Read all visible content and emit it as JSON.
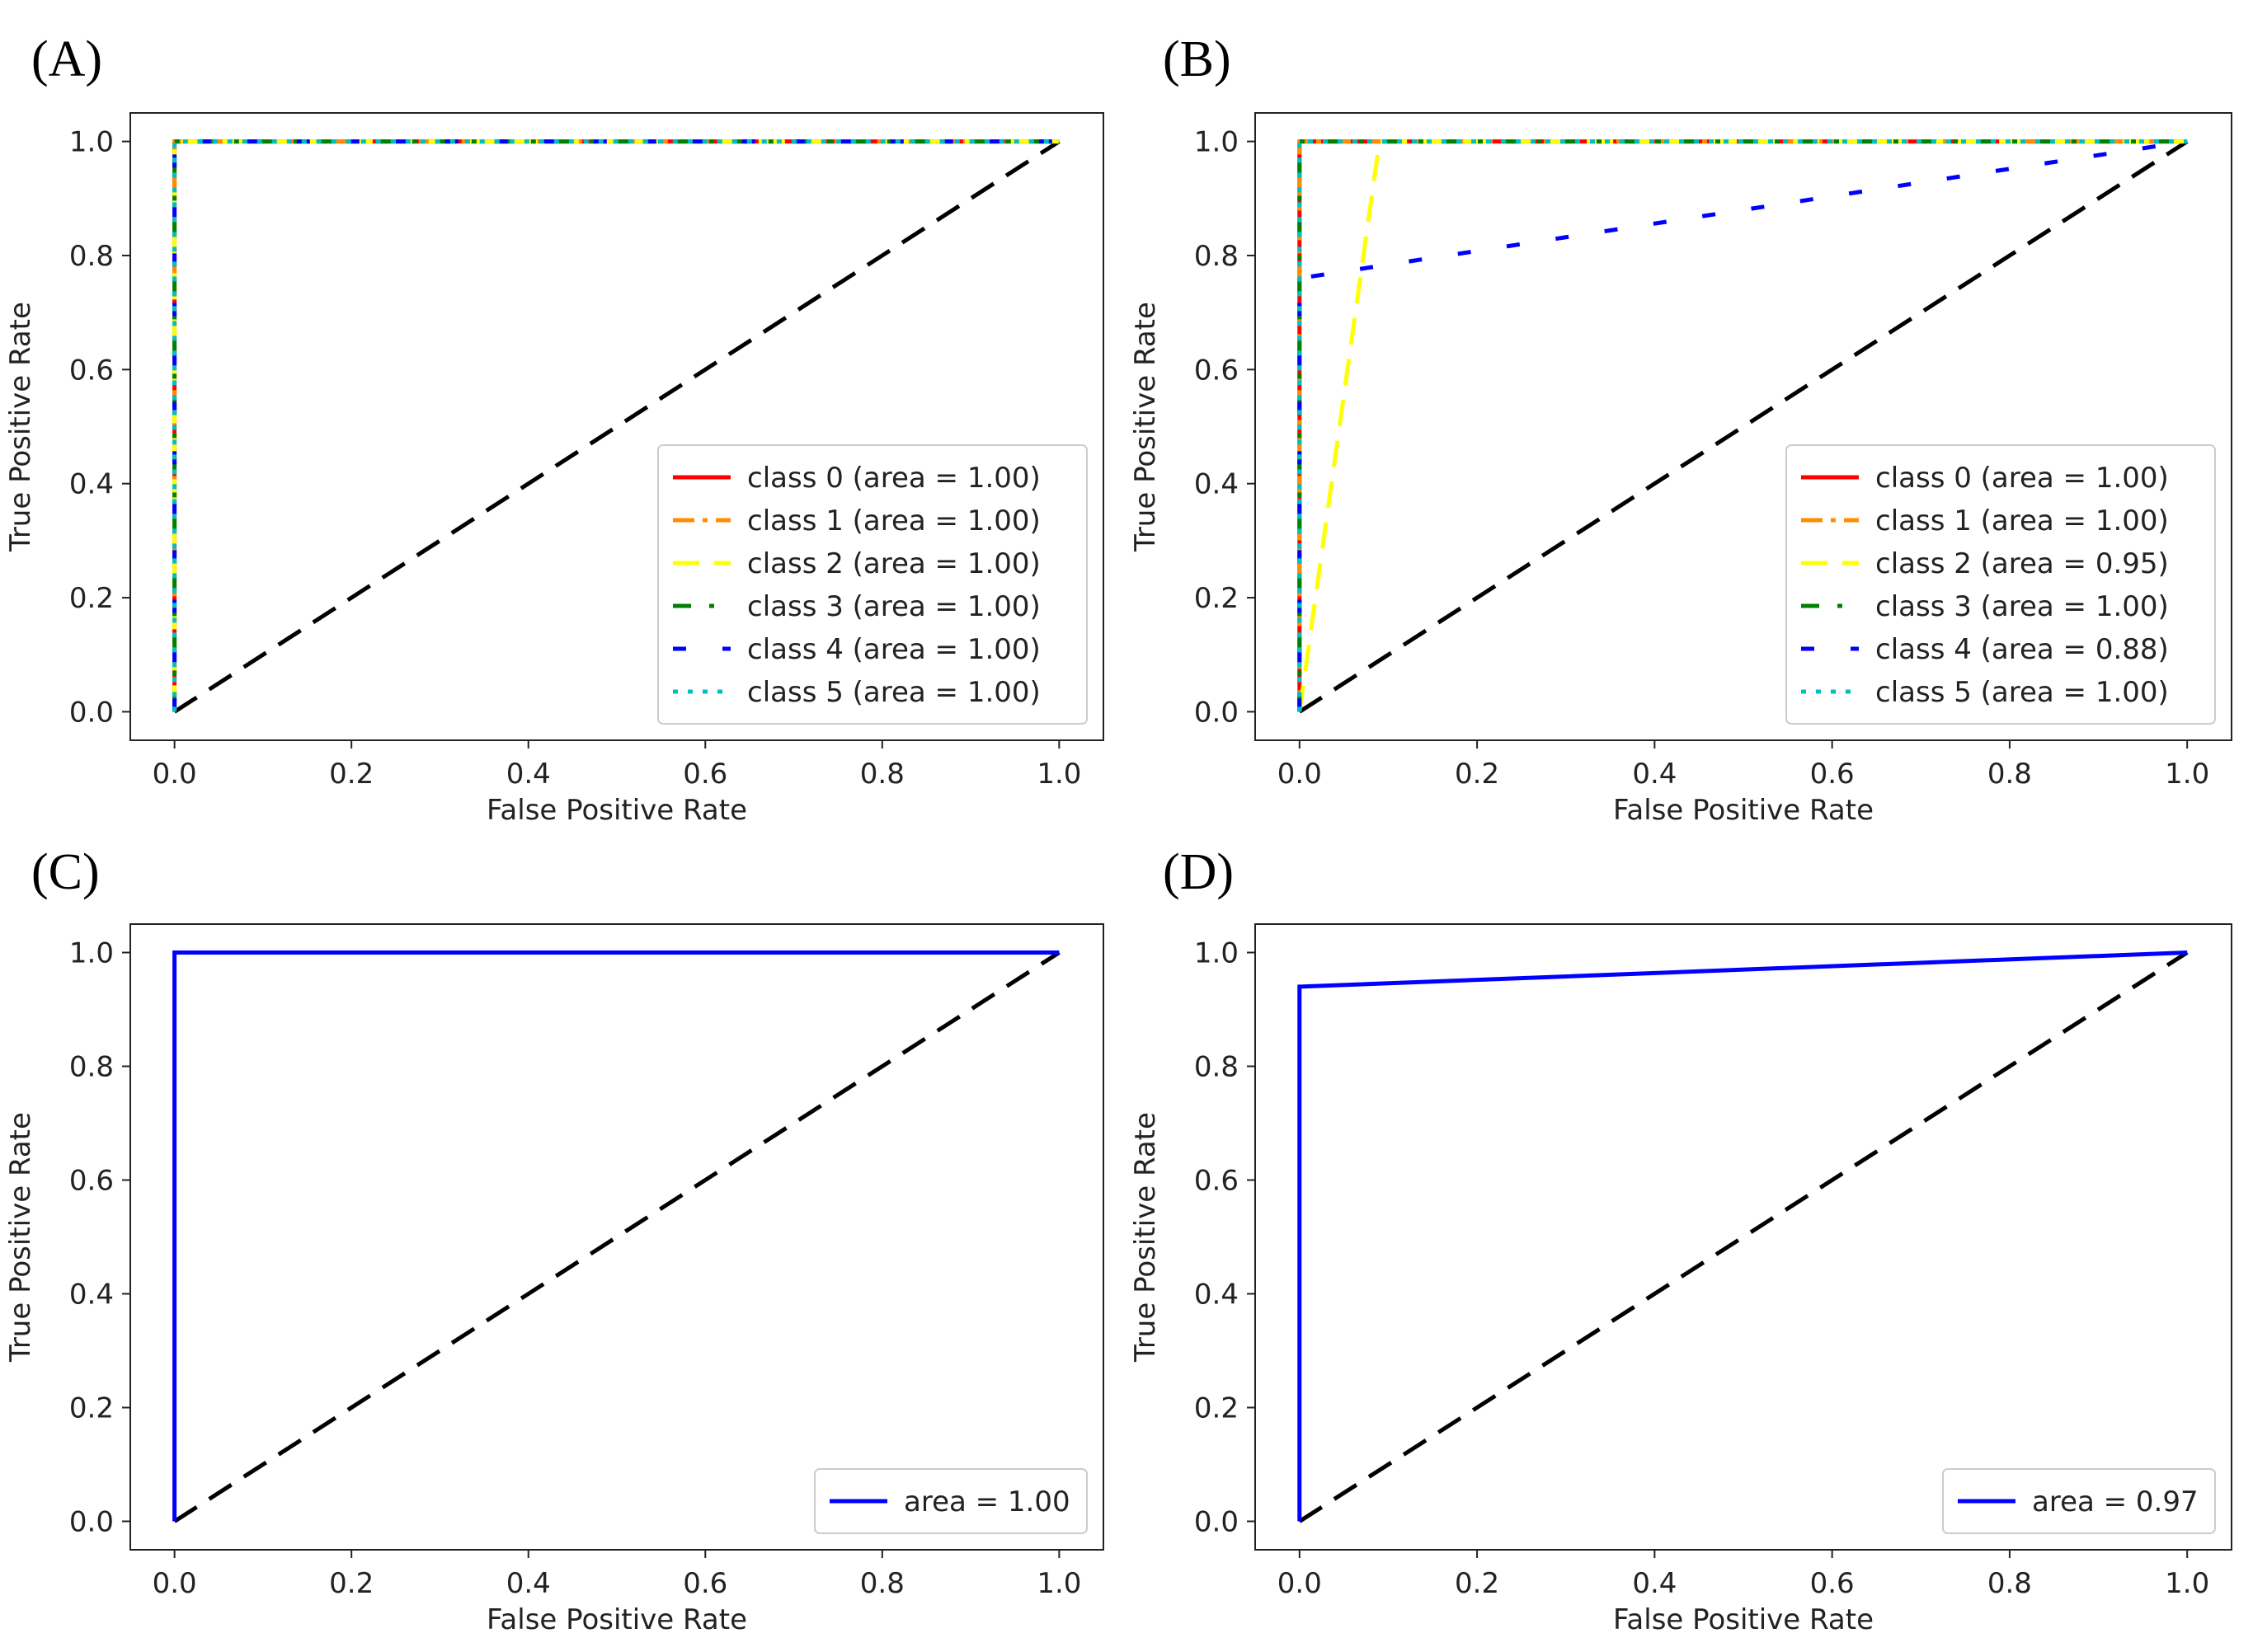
{
  "figure": {
    "panels": [
      {
        "label": "(A)"
      },
      {
        "label": "(B)"
      },
      {
        "label": "(C)"
      },
      {
        "label": "(D)"
      }
    ]
  },
  "chart_data": [
    {
      "type": "line",
      "panel": "(A)",
      "xlabel": "False Positive Rate",
      "ylabel": "True Positive Rate",
      "xlim": [
        -0.05,
        1.05
      ],
      "ylim": [
        -0.05,
        1.05
      ],
      "ticks": [
        "0.0",
        "0.2",
        "0.4",
        "0.6",
        "0.8",
        "1.0"
      ],
      "legend_position": "lower-right",
      "diagonal": {
        "x": [
          0,
          1
        ],
        "y": [
          0,
          1
        ],
        "color": "#000000",
        "style": "dashed"
      },
      "series": [
        {
          "name": "class 0 (area = 1.00)",
          "color": "#ff0000",
          "style": "solid",
          "x": [
            0,
            0,
            1
          ],
          "y": [
            0,
            1,
            1
          ]
        },
        {
          "name": "class 1 (area = 1.00)",
          "color": "#ff8c00",
          "style": "dashdot",
          "x": [
            0,
            0,
            1
          ],
          "y": [
            0,
            1,
            1
          ]
        },
        {
          "name": "class 2 (area = 1.00)",
          "color": "#ffff00",
          "style": "dashed",
          "x": [
            0,
            0,
            1
          ],
          "y": [
            0,
            1,
            1
          ]
        },
        {
          "name": "class 3 (area = 1.00)",
          "color": "#008000",
          "style": "dashdot-loose",
          "x": [
            0,
            0,
            1
          ],
          "y": [
            0,
            1,
            1
          ]
        },
        {
          "name": "class 4 (area = 1.00)",
          "color": "#0000ff",
          "style": "loose-dash",
          "x": [
            0,
            0,
            1
          ],
          "y": [
            0,
            1,
            1
          ]
        },
        {
          "name": "class 5 (area = 1.00)",
          "color": "#00bfbf",
          "style": "dotted",
          "x": [
            0,
            0,
            1
          ],
          "y": [
            0,
            1,
            1
          ]
        }
      ]
    },
    {
      "type": "line",
      "panel": "(B)",
      "xlabel": "False Positive Rate",
      "ylabel": "True Positive Rate",
      "xlim": [
        -0.05,
        1.05
      ],
      "ylim": [
        -0.05,
        1.05
      ],
      "ticks": [
        "0.0",
        "0.2",
        "0.4",
        "0.6",
        "0.8",
        "1.0"
      ],
      "legend_position": "lower-right",
      "diagonal": {
        "x": [
          0,
          1
        ],
        "y": [
          0,
          1
        ],
        "color": "#000000",
        "style": "dashed"
      },
      "series": [
        {
          "name": "class 0 (area = 1.00)",
          "color": "#ff0000",
          "style": "solid",
          "x": [
            0,
            0,
            1
          ],
          "y": [
            0,
            1,
            1
          ]
        },
        {
          "name": "class 1 (area = 1.00)",
          "color": "#ff8c00",
          "style": "dashdot",
          "x": [
            0,
            0,
            1
          ],
          "y": [
            0,
            1,
            1
          ]
        },
        {
          "name": "class 2 (area = 0.95)",
          "color": "#ffff00",
          "style": "dashed",
          "x": [
            0,
            0.09,
            1
          ],
          "y": [
            0,
            1,
            1
          ]
        },
        {
          "name": "class 3 (area = 1.00)",
          "color": "#008000",
          "style": "dashdot-loose",
          "x": [
            0,
            0,
            1
          ],
          "y": [
            0,
            1,
            1
          ]
        },
        {
          "name": "class 4 (area = 0.88)",
          "color": "#0000ff",
          "style": "loose-dash",
          "x": [
            0,
            0,
            1
          ],
          "y": [
            0,
            0.76,
            1
          ]
        },
        {
          "name": "class 5 (area = 1.00)",
          "color": "#00bfbf",
          "style": "dotted",
          "x": [
            0,
            0,
            1
          ],
          "y": [
            0,
            1,
            1
          ]
        }
      ]
    },
    {
      "type": "line",
      "panel": "(C)",
      "xlabel": "False Positive Rate",
      "ylabel": "True Positive Rate",
      "xlim": [
        -0.05,
        1.05
      ],
      "ylim": [
        -0.05,
        1.05
      ],
      "ticks": [
        "0.0",
        "0.2",
        "0.4",
        "0.6",
        "0.8",
        "1.0"
      ],
      "legend_position": "lower-right",
      "diagonal": {
        "x": [
          0,
          1
        ],
        "y": [
          0,
          1
        ],
        "color": "#000000",
        "style": "dashed"
      },
      "series": [
        {
          "name": "area = 1.00",
          "color": "#0000ff",
          "style": "solid",
          "x": [
            0,
            0,
            1
          ],
          "y": [
            0,
            1,
            1
          ]
        }
      ]
    },
    {
      "type": "line",
      "panel": "(D)",
      "xlabel": "False Positive Rate",
      "ylabel": "True Positive Rate",
      "xlim": [
        -0.05,
        1.05
      ],
      "ylim": [
        -0.05,
        1.05
      ],
      "ticks": [
        "0.0",
        "0.2",
        "0.4",
        "0.6",
        "0.8",
        "1.0"
      ],
      "legend_position": "lower-right",
      "diagonal": {
        "x": [
          0,
          1
        ],
        "y": [
          0,
          1
        ],
        "color": "#000000",
        "style": "dashed"
      },
      "series": [
        {
          "name": "area = 0.97",
          "color": "#0000ff",
          "style": "solid",
          "x": [
            0,
            0,
            1
          ],
          "y": [
            0,
            0.94,
            1
          ]
        }
      ]
    }
  ]
}
